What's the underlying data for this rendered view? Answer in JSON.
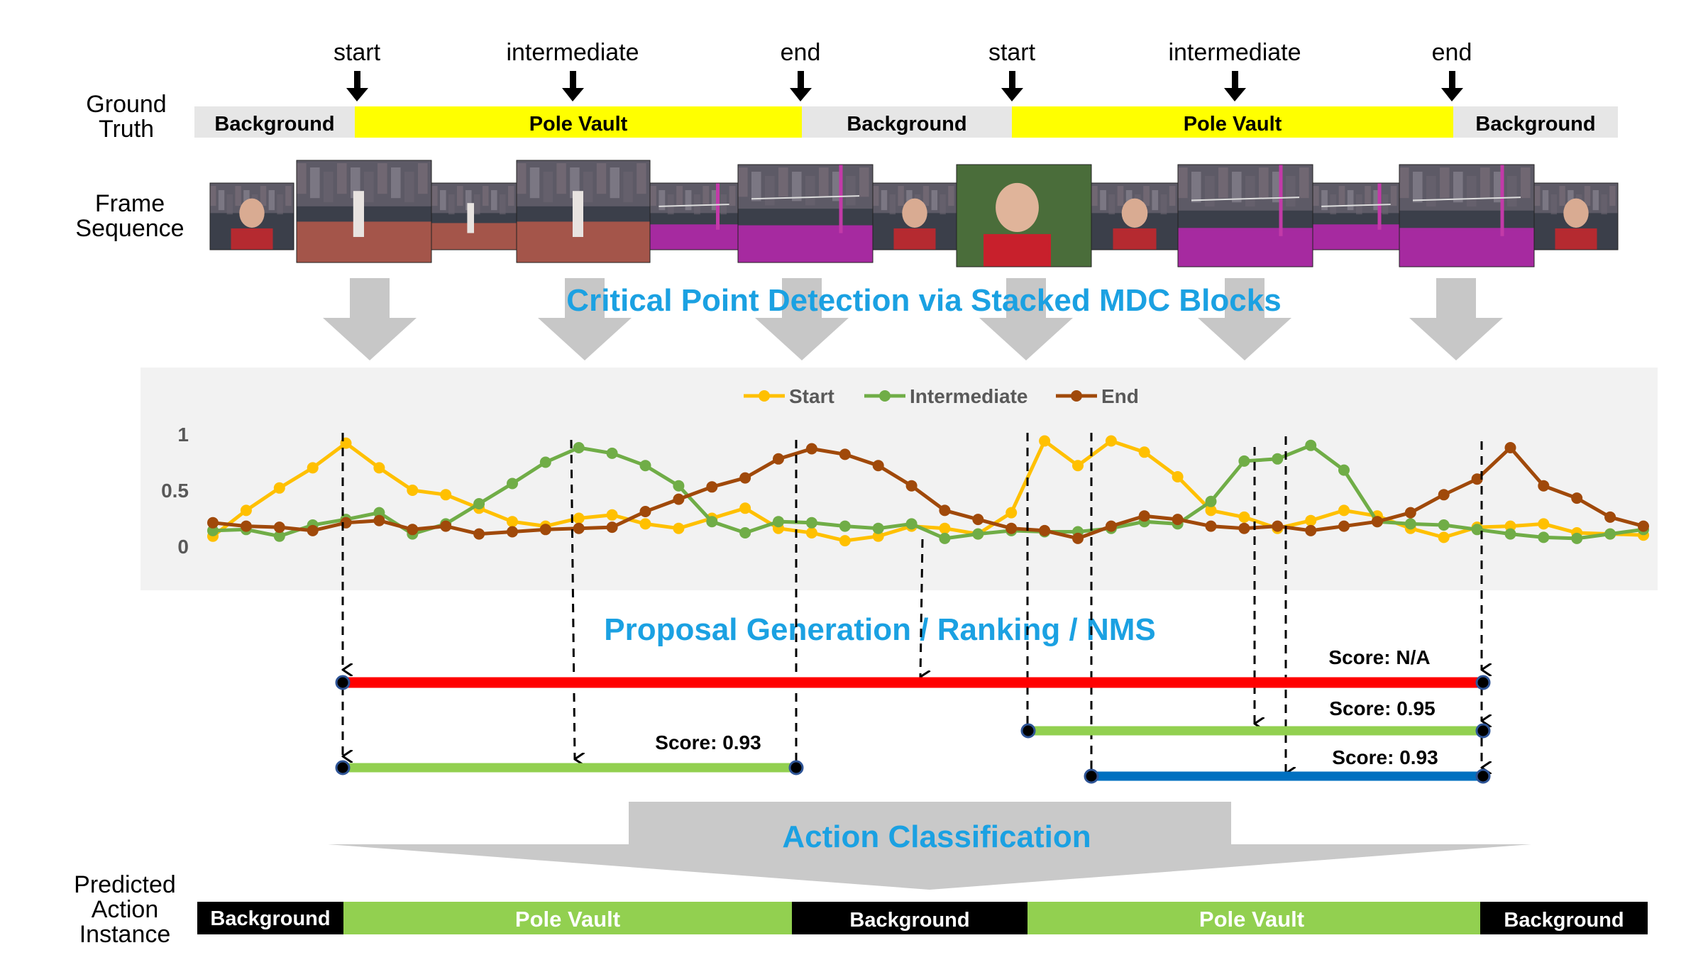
{
  "ground_truth": {
    "label": [
      "Ground",
      "Truth"
    ],
    "markers": [
      "start",
      "intermediate",
      "end",
      "start",
      "intermediate",
      "end"
    ],
    "segments": [
      {
        "label": "Background",
        "color": "#e6e6e6"
      },
      {
        "label": "Pole Vault",
        "color": "#ffff00"
      },
      {
        "label": "Background",
        "color": "#e6e6e6"
      },
      {
        "label": "Pole Vault",
        "color": "#ffff00"
      },
      {
        "label": "Background",
        "color": "#e6e6e6"
      }
    ]
  },
  "frame_sequence": {
    "label": [
      "Frame",
      "Sequence"
    ]
  },
  "titles": {
    "critical_point": "Critical Point Detection via Stacked MDC Blocks",
    "proposal": "Proposal Generation / Ranking / NMS",
    "classification": "Action Classification"
  },
  "chart_data": {
    "type": "line",
    "ytick_labels": [
      "1",
      "0.5",
      "0"
    ],
    "ylim": [
      0,
      1
    ],
    "legend_position": "top-center",
    "series": [
      {
        "name": "Start",
        "color": "#ffc000",
        "values": [
          0.09,
          0.32,
          0.52,
          0.7,
          0.92,
          0.7,
          0.5,
          0.46,
          0.34,
          0.22,
          0.18,
          0.25,
          0.28,
          0.2,
          0.16,
          0.25,
          0.34,
          0.16,
          0.12,
          0.05,
          0.09,
          0.18,
          0.16,
          0.11,
          0.3,
          0.94,
          0.72,
          0.94,
          0.84,
          0.62,
          0.32,
          0.26,
          0.16,
          0.23,
          0.32,
          0.27,
          0.16,
          0.08,
          0.17,
          0.18,
          0.2,
          0.12,
          0.11,
          0.1
        ]
      },
      {
        "name": "Intermediate",
        "color": "#70ad47",
        "values": [
          0.14,
          0.15,
          0.09,
          0.19,
          0.24,
          0.3,
          0.11,
          0.2,
          0.38,
          0.56,
          0.75,
          0.88,
          0.83,
          0.72,
          0.54,
          0.22,
          0.12,
          0.22,
          0.21,
          0.18,
          0.16,
          0.2,
          0.07,
          0.11,
          0.14,
          0.13,
          0.13,
          0.16,
          0.22,
          0.2,
          0.4,
          0.76,
          0.78,
          0.9,
          0.68,
          0.22,
          0.2,
          0.19,
          0.15,
          0.11,
          0.08,
          0.07,
          0.11,
          0.15
        ]
      },
      {
        "name": "End",
        "color": "#a0490a",
        "values": [
          0.21,
          0.18,
          0.17,
          0.14,
          0.21,
          0.23,
          0.15,
          0.18,
          0.11,
          0.13,
          0.15,
          0.16,
          0.17,
          0.31,
          0.42,
          0.53,
          0.61,
          0.78,
          0.87,
          0.82,
          0.72,
          0.54,
          0.32,
          0.24,
          0.16,
          0.14,
          0.07,
          0.18,
          0.27,
          0.24,
          0.18,
          0.16,
          0.18,
          0.14,
          0.18,
          0.22,
          0.3,
          0.46,
          0.6,
          0.88,
          0.54,
          0.43,
          0.26,
          0.18
        ]
      }
    ]
  },
  "proposals": [
    {
      "score_label": "Score: N/A",
      "color": "#ff0000"
    },
    {
      "score_label": "Score: 0.95",
      "color": "#92d050"
    },
    {
      "score_label": "Score: 0.93",
      "color": "#0070c0"
    },
    {
      "score_label": "Score: 0.93",
      "color": "#92d050"
    }
  ],
  "predicted": {
    "label": [
      "Predicted",
      "Action",
      "Instance"
    ],
    "segments": [
      {
        "label": "Background",
        "color": "#000000",
        "text_color": "#ffffff"
      },
      {
        "label": "Pole Vault",
        "color": "#92d050",
        "text_color": "#ffffff"
      },
      {
        "label": "Background",
        "color": "#000000",
        "text_color": "#ffffff"
      },
      {
        "label": "Pole Vault",
        "color": "#92d050",
        "text_color": "#ffffff"
      },
      {
        "label": "Background",
        "color": "#000000",
        "text_color": "#ffffff"
      }
    ]
  },
  "colors": {
    "title_blue": "#1ba1e2",
    "chart_panel": "#f2f2f2",
    "funnel_gray": "#c9c9c9"
  }
}
